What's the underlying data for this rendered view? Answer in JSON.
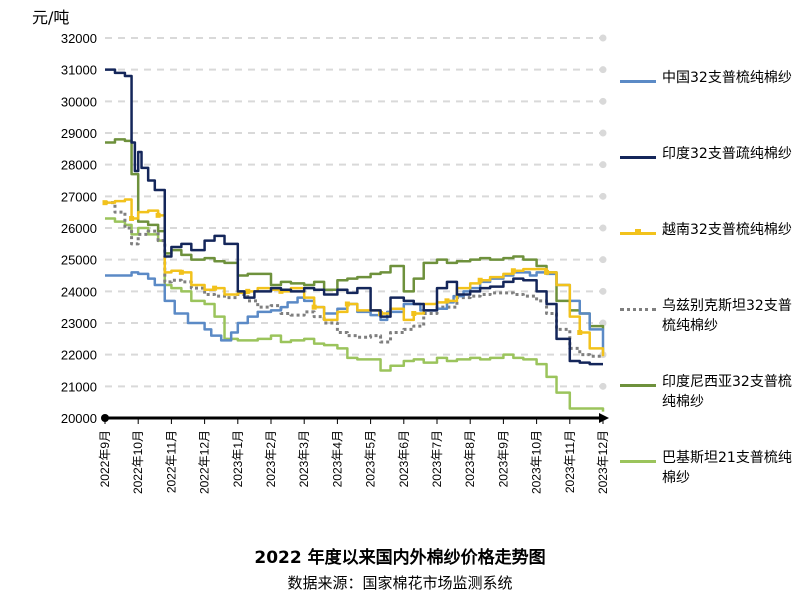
{
  "unit_label": "元/吨",
  "title": "2022 年度以来国内外棉纱价格走势图",
  "source": "数据来源：国家棉花市场监测系统",
  "chart_data": {
    "type": "line",
    "title": "2022 年度以来国内外棉纱价格走势图",
    "ylabel": "元/吨",
    "ylim": [
      20000,
      32000
    ],
    "yticks": [
      20000,
      21000,
      22000,
      23000,
      24000,
      25000,
      26000,
      27000,
      28000,
      29000,
      30000,
      31000,
      32000
    ],
    "x_labels": [
      "2022年9月",
      "2022年10月",
      "2022年11月",
      "2022年12月",
      "2023年1月",
      "2023年2月",
      "2023年3月",
      "2023年4月",
      "2023年5月",
      "2023年6月",
      "2023年7月",
      "2023年8月",
      "2023年9月",
      "2023年10月",
      "2023年11月",
      "2023年12月"
    ],
    "grid": "horizontal dashed",
    "legend_position": "right",
    "series": [
      {
        "name": "中国32支普梳纯棉纱",
        "color": "#5b8ac6",
        "style": "solid",
        "x": [
          0,
          0.5,
          0.8,
          1.0,
          1.3,
          1.5,
          1.8,
          2.1,
          2.5,
          3.0,
          3.2,
          3.5,
          3.8,
          4.0,
          4.3,
          4.6,
          5.0,
          5.3,
          5.5,
          5.8,
          6.0,
          6.3,
          6.6,
          7.0,
          7.3,
          7.6,
          8.0,
          8.3,
          8.5,
          9.0,
          9.5,
          10.0,
          10.3,
          10.5,
          10.8,
          11.0,
          11.3,
          11.6,
          12.0,
          12.3,
          12.5,
          12.8,
          13.0,
          13.3,
          13.6,
          14.0,
          14.3,
          14.6,
          15.0
        ],
        "values": [
          24500,
          24500,
          24600,
          24550,
          24400,
          24200,
          23700,
          23300,
          23000,
          22800,
          22600,
          22450,
          22700,
          23000,
          23200,
          23350,
          23400,
          23500,
          23650,
          23800,
          23700,
          23500,
          23300,
          23450,
          23600,
          23350,
          23250,
          23100,
          23350,
          23600,
          23400,
          23450,
          23650,
          23850,
          24000,
          24100,
          24300,
          24400,
          24500,
          24600,
          24600,
          24500,
          24600,
          24550,
          24200,
          23700,
          23300,
          22800,
          22100
        ]
      },
      {
        "name": "印度32支普疏纯棉纱",
        "color": "#14265a",
        "style": "solid",
        "x": [
          0,
          0.3,
          0.6,
          0.8,
          0.9,
          1.0,
          1.1,
          1.3,
          1.5,
          1.8,
          2.0,
          2.3,
          2.6,
          3.0,
          3.3,
          3.6,
          4.0,
          4.2,
          4.5,
          5.0,
          5.3,
          5.6,
          6.0,
          6.3,
          6.6,
          7.0,
          7.3,
          7.6,
          8.0,
          8.3,
          8.6,
          9.0,
          9.3,
          9.6,
          10.0,
          10.3,
          10.6,
          11.0,
          11.3,
          11.6,
          12.0,
          12.3,
          12.6,
          13.0,
          13.3,
          13.6,
          14.0,
          14.3,
          14.6,
          15.0
        ],
        "values": [
          31000,
          30900,
          30800,
          28700,
          27800,
          28400,
          27900,
          27500,
          27200,
          25100,
          25400,
          25500,
          25300,
          25600,
          25750,
          25500,
          24000,
          23800,
          24000,
          24100,
          24050,
          24000,
          24100,
          24050,
          23900,
          24050,
          23950,
          24100,
          23400,
          23200,
          23800,
          23700,
          23600,
          23400,
          24100,
          24300,
          23900,
          24000,
          24100,
          24150,
          24300,
          24400,
          24350,
          24000,
          23600,
          22500,
          21800,
          21750,
          21700,
          21700
        ]
      },
      {
        "name": "越南32支普梳纯棉纱",
        "color": "#f2c21c",
        "style": "solid-marker",
        "x": [
          0,
          0.3,
          0.6,
          0.8,
          1.0,
          1.3,
          1.6,
          1.8,
          2.0,
          2.3,
          2.6,
          3.0,
          3.3,
          3.6,
          4.0,
          4.3,
          4.6,
          5.0,
          5.3,
          5.6,
          6.0,
          6.3,
          6.6,
          7.0,
          7.3,
          7.6,
          8.0,
          8.3,
          8.6,
          9.0,
          9.3,
          9.6,
          10.0,
          10.3,
          10.6,
          11.0,
          11.3,
          11.6,
          12.0,
          12.3,
          12.6,
          13.0,
          13.3,
          13.6,
          14.0,
          14.3,
          14.6,
          15.0
        ],
        "values": [
          26800,
          26850,
          26900,
          26300,
          26500,
          26550,
          26400,
          24600,
          24650,
          24600,
          24200,
          24050,
          24100,
          23900,
          23950,
          24000,
          24100,
          24050,
          24000,
          24100,
          23800,
          23500,
          23100,
          23350,
          23600,
          23400,
          23400,
          23300,
          23450,
          23100,
          23300,
          23600,
          23650,
          23700,
          24100,
          24250,
          24350,
          24450,
          24550,
          24650,
          24700,
          24700,
          24600,
          24200,
          23200,
          22700,
          22200,
          21950
        ]
      },
      {
        "name": "乌兹别克斯坦32支普梳纯棉纱",
        "color": "#7f7f7f",
        "style": "dotted",
        "x": [
          0,
          0.3,
          0.6,
          0.8,
          1.0,
          1.3,
          1.6,
          1.8,
          2.0,
          2.3,
          2.6,
          3.0,
          3.3,
          3.6,
          4.0,
          4.3,
          4.6,
          5.0,
          5.3,
          5.6,
          6.0,
          6.3,
          6.6,
          7.0,
          7.3,
          7.6,
          8.0,
          8.3,
          8.6,
          9.0,
          9.3,
          9.6,
          10.0,
          10.3,
          10.6,
          11.0,
          11.3,
          11.6,
          12.0,
          12.3,
          12.6,
          13.0,
          13.3,
          13.6,
          14.0,
          14.3,
          14.6,
          15.0
        ],
        "values": [
          26800,
          26500,
          26000,
          25500,
          25800,
          25900,
          25600,
          24300,
          24350,
          24300,
          24100,
          23900,
          23850,
          23800,
          23900,
          23700,
          23500,
          23550,
          23300,
          23250,
          23350,
          23200,
          23000,
          22700,
          22600,
          22550,
          22600,
          22400,
          22700,
          22800,
          22900,
          23300,
          23500,
          23500,
          23800,
          23850,
          23900,
          23950,
          23950,
          23900,
          23850,
          23700,
          23300,
          22800,
          22200,
          22000,
          21950,
          21950
        ]
      },
      {
        "name": "印度尼西亚32支普梳纯棉纱",
        "color": "#6e913c",
        "style": "solid",
        "x": [
          0,
          0.3,
          0.6,
          0.8,
          1.0,
          1.3,
          1.6,
          1.8,
          2.0,
          2.3,
          2.6,
          3.0,
          3.3,
          3.6,
          4.0,
          4.3,
          4.6,
          5.0,
          5.3,
          5.6,
          6.0,
          6.3,
          6.6,
          7.0,
          7.3,
          7.6,
          8.0,
          8.3,
          8.6,
          9.0,
          9.3,
          9.6,
          10.0,
          10.3,
          10.6,
          11.0,
          11.3,
          11.6,
          12.0,
          12.3,
          12.6,
          13.0,
          13.3,
          13.6,
          14.0,
          14.3,
          14.6,
          15.0
        ],
        "values": [
          28700,
          28800,
          28750,
          27700,
          26200,
          26100,
          25900,
          25200,
          25300,
          25150,
          25000,
          25050,
          24950,
          24900,
          24500,
          24550,
          24550,
          24200,
          24300,
          24250,
          24200,
          24300,
          24050,
          24350,
          24400,
          24450,
          24550,
          24600,
          24800,
          24000,
          24400,
          24900,
          25000,
          24900,
          24950,
          25000,
          25050,
          25000,
          25050,
          25100,
          25000,
          24800,
          24600,
          23700,
          23400,
          23300,
          22900,
          22800
        ]
      },
      {
        "name": "巴基斯坦21支普梳纯棉纱",
        "color": "#9bc45c",
        "style": "solid",
        "x": [
          0,
          0.3,
          0.6,
          0.8,
          1.0,
          1.3,
          1.6,
          1.8,
          2.0,
          2.3,
          2.6,
          3.0,
          3.3,
          3.6,
          4.0,
          4.3,
          4.6,
          5.0,
          5.3,
          5.6,
          6.0,
          6.3,
          6.6,
          7.0,
          7.3,
          7.6,
          8.0,
          8.3,
          8.6,
          9.0,
          9.3,
          9.6,
          10.0,
          10.3,
          10.6,
          11.0,
          11.3,
          11.6,
          12.0,
          12.3,
          12.6,
          13.0,
          13.3,
          13.6,
          14.0,
          14.3,
          14.6,
          15.0
        ],
        "values": [
          26300,
          26200,
          26100,
          25800,
          26000,
          25800,
          25600,
          24200,
          24100,
          24000,
          23700,
          23600,
          23200,
          22500,
          22450,
          22450,
          22500,
          22600,
          22400,
          22450,
          22500,
          22350,
          22300,
          22200,
          21900,
          21850,
          21850,
          21500,
          21650,
          21800,
          21850,
          21750,
          21900,
          21800,
          21850,
          21900,
          21850,
          21900,
          22000,
          21900,
          21850,
          21700,
          21300,
          20800,
          20300,
          20300,
          20300,
          20200
        ]
      }
    ]
  }
}
